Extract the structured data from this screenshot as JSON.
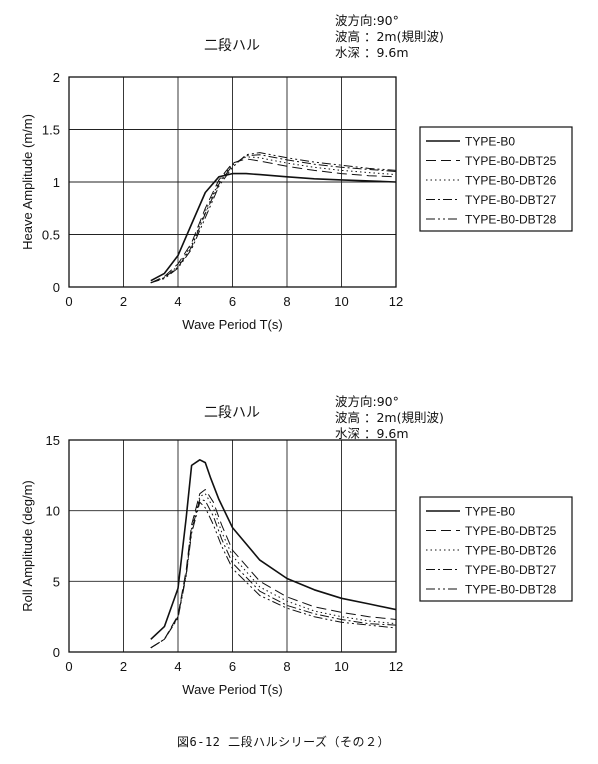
{
  "caption": "図6-12 二段ハルシリーズ（その２）",
  "chart_data": [
    {
      "type": "line",
      "title": "二段ハル",
      "conditions": [
        "波方向:90°",
        "波高 ：2m(規則波)",
        "水深 ：9.6m"
      ],
      "xlabel": "Wave Period  T(s)",
      "ylabel": "Heave Amplitude (m/m)",
      "xlim": [
        0,
        12
      ],
      "ylim": [
        0,
        2
      ],
      "xticks": [
        "0",
        "2",
        "4",
        "6",
        "8",
        "10",
        "12"
      ],
      "yticks": [
        "0",
        "0.5",
        "1",
        "1.5",
        "2"
      ],
      "grid": true,
      "legend": "right",
      "series": [
        {
          "name": "TYPE-B0",
          "dash": "",
          "x": [
            3,
            3.5,
            4,
            4.5,
            5,
            5.5,
            6,
            6.5,
            7,
            8,
            9,
            10,
            11,
            12
          ],
          "y": [
            0.06,
            0.13,
            0.3,
            0.6,
            0.9,
            1.05,
            1.08,
            1.08,
            1.07,
            1.05,
            1.03,
            1.02,
            1.01,
            1.0
          ]
        },
        {
          "name": "TYPE-B0-DBT25",
          "dash": "10,5",
          "x": [
            3,
            3.5,
            4,
            4.5,
            5,
            5.5,
            6,
            6.5,
            7,
            8,
            9,
            10,
            11,
            12
          ],
          "y": [
            0.04,
            0.1,
            0.22,
            0.42,
            0.75,
            1.02,
            1.18,
            1.22,
            1.2,
            1.15,
            1.11,
            1.08,
            1.06,
            1.05
          ]
        },
        {
          "name": "TYPE-B0-DBT26",
          "dash": "1.5,3",
          "x": [
            3,
            3.5,
            4,
            4.5,
            5,
            5.5,
            6,
            6.5,
            7,
            8,
            9,
            10,
            11,
            12
          ],
          "y": [
            0.04,
            0.09,
            0.2,
            0.4,
            0.72,
            1.0,
            1.17,
            1.24,
            1.23,
            1.18,
            1.14,
            1.11,
            1.09,
            1.07
          ]
        },
        {
          "name": "TYPE-B0-DBT27",
          "dash": "9,3,2,3",
          "x": [
            3,
            3.5,
            4,
            4.5,
            5,
            5.5,
            6,
            6.5,
            7,
            8,
            9,
            10,
            11,
            12
          ],
          "y": [
            0.04,
            0.09,
            0.19,
            0.38,
            0.7,
            0.98,
            1.16,
            1.25,
            1.26,
            1.21,
            1.17,
            1.14,
            1.12,
            1.1
          ]
        },
        {
          "name": "TYPE-B0-DBT28",
          "dash": "9,3,2,3,2,3",
          "x": [
            3,
            3.5,
            4,
            4.5,
            5,
            5.5,
            6,
            6.5,
            7,
            8,
            9,
            10,
            11,
            12
          ],
          "y": [
            0.04,
            0.08,
            0.18,
            0.36,
            0.66,
            0.96,
            1.14,
            1.26,
            1.28,
            1.23,
            1.19,
            1.16,
            1.13,
            1.11
          ]
        }
      ]
    },
    {
      "type": "line",
      "title": "二段ハル",
      "conditions": [
        "波方向:90°",
        "波高 ：2m(規則波)",
        "水深 ：9.6m"
      ],
      "xlabel": "Wave Period  T(s)",
      "ylabel": "Roll Amplitude (deg/m)",
      "xlim": [
        0,
        12
      ],
      "ylim": [
        0,
        15
      ],
      "xticks": [
        "0",
        "2",
        "4",
        "6",
        "8",
        "10",
        "12"
      ],
      "yticks": [
        "0",
        "5",
        "10",
        "15"
      ],
      "grid": true,
      "legend": "right",
      "series": [
        {
          "name": "TYPE-B0",
          "dash": "",
          "x": [
            3,
            3.5,
            4,
            4.3,
            4.5,
            4.8,
            5,
            5.2,
            5.5,
            6,
            7,
            8,
            9,
            10,
            11,
            12
          ],
          "y": [
            0.9,
            1.8,
            4.5,
            9.5,
            13.2,
            13.6,
            13.4,
            12.3,
            10.8,
            8.8,
            6.5,
            5.2,
            4.4,
            3.8,
            3.4,
            3.0
          ]
        },
        {
          "name": "TYPE-B0-DBT25",
          "dash": "10,5",
          "x": [
            3,
            3.5,
            4,
            4.3,
            4.5,
            4.8,
            5,
            5.3,
            5.6,
            6,
            7,
            8,
            9,
            10,
            11,
            12
          ],
          "y": [
            0.3,
            0.9,
            2.6,
            5.8,
            9.0,
            11.2,
            11.5,
            10.6,
            9.0,
            7.2,
            5.0,
            3.9,
            3.2,
            2.8,
            2.5,
            2.3
          ]
        },
        {
          "name": "TYPE-B0-DBT26",
          "dash": "1.5,3",
          "x": [
            3,
            3.5,
            4,
            4.3,
            4.5,
            4.8,
            5,
            5.3,
            5.6,
            6,
            7,
            8,
            9,
            10,
            11,
            12
          ],
          "y": [
            0.3,
            0.9,
            2.5,
            5.6,
            8.8,
            11.0,
            11.2,
            10.2,
            8.5,
            6.8,
            4.6,
            3.6,
            2.9,
            2.5,
            2.2,
            2.0
          ]
        },
        {
          "name": "TYPE-B0-DBT27",
          "dash": "9,3,2,3",
          "x": [
            3,
            3.5,
            4,
            4.3,
            4.5,
            4.8,
            5,
            5.3,
            5.6,
            6,
            7,
            8,
            9,
            10,
            11,
            12
          ],
          "y": [
            0.3,
            0.9,
            2.5,
            5.5,
            8.6,
            10.8,
            10.7,
            9.6,
            8.0,
            6.3,
            4.3,
            3.3,
            2.7,
            2.3,
            2.0,
            1.9
          ]
        },
        {
          "name": "TYPE-B0-DBT28",
          "dash": "9,3,2,3,2,3",
          "x": [
            3,
            3.5,
            4,
            4.3,
            4.5,
            4.8,
            5,
            5.3,
            5.6,
            6,
            7,
            8,
            9,
            10,
            11,
            12
          ],
          "y": [
            0.3,
            0.9,
            2.4,
            5.4,
            8.4,
            10.6,
            10.2,
            9.0,
            7.5,
            5.9,
            4.0,
            3.1,
            2.5,
            2.1,
            1.9,
            1.7
          ]
        }
      ]
    }
  ]
}
